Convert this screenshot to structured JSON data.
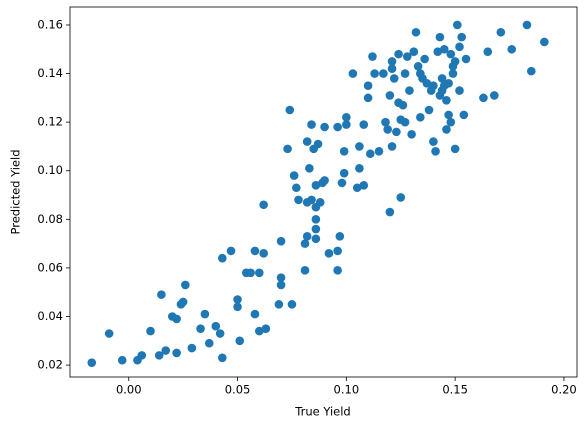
{
  "chart_data": {
    "type": "scatter",
    "xlabel": "True Yield",
    "ylabel": "Predicted Yield",
    "color": "#1f77b4",
    "xlim": [
      -0.027,
      0.206
    ],
    "ylim": [
      0.0151,
      0.1674
    ],
    "xticks": [
      {
        "value": 0,
        "label": "0.00"
      },
      0.05,
      {
        "value": 0.1,
        "label": "0.10"
      },
      0.15,
      {
        "value": 0.2,
        "label": "0.20"
      }
    ],
    "yticks": [
      0.02,
      0.04,
      0.06,
      0.08,
      {
        "value": 0.1,
        "label": "0.10"
      },
      0.12,
      0.14,
      0.16
    ],
    "x": [
      -0.017,
      -0.009,
      -0.003,
      0.004,
      0.006,
      0.01,
      0.014,
      0.015,
      0.017,
      0.02,
      0.022,
      0.022,
      0.024,
      0.025,
      0.026,
      0.029,
      0.033,
      0.035,
      0.037,
      0.04,
      0.042,
      0.043,
      0.043,
      0.047,
      0.05,
      0.05,
      0.051,
      0.054,
      0.056,
      0.058,
      0.058,
      0.06,
      0.06,
      0.062,
      0.062,
      0.063,
      0.069,
      0.07,
      0.07,
      0.07,
      0.073,
      0.074,
      0.075,
      0.076,
      0.077,
      0.078,
      0.081,
      0.081,
      0.082,
      0.082,
      0.082,
      0.083,
      0.084,
      0.084,
      0.085,
      0.086,
      0.086,
      0.086,
      0.086,
      0.086,
      0.087,
      0.088,
      0.089,
      0.09,
      0.09,
      0.092,
      0.096,
      0.096,
      0.097,
      0.096,
      0.098,
      0.099,
      0.099,
      0.1,
      0.1,
      0.103,
      0.105,
      0.106,
      0.106,
      0.108,
      0.108,
      0.11,
      0.111,
      0.11,
      0.112,
      0.113,
      0.115,
      0.117,
      0.118,
      0.119,
      0.12,
      0.12,
      0.121,
      0.121,
      0.121,
      0.122,
      0.123,
      0.124,
      0.124,
      0.125,
      0.125,
      0.126,
      0.127,
      0.127,
      0.128,
      0.129,
      0.13,
      0.131,
      0.132,
      0.133,
      0.134,
      0.134,
      0.135,
      0.136,
      0.137,
      0.138,
      0.139,
      0.14,
      0.14,
      0.141,
      0.142,
      0.143,
      0.143,
      0.144,
      0.144,
      0.145,
      0.145,
      0.146,
      0.146,
      0.147,
      0.147,
      0.148,
      0.148,
      0.149,
      0.149,
      0.15,
      0.15,
      0.151,
      0.152,
      0.152,
      0.153,
      0.154,
      0.155,
      0.163,
      0.165,
      0.168,
      0.171,
      0.176,
      0.183,
      0.185,
      0.191
    ],
    "values": [
      0.021,
      0.033,
      0.022,
      0.022,
      0.024,
      0.034,
      0.024,
      0.049,
      0.026,
      0.04,
      0.025,
      0.039,
      0.045,
      0.046,
      0.053,
      0.027,
      0.035,
      0.041,
      0.029,
      0.036,
      0.033,
      0.023,
      0.064,
      0.067,
      0.047,
      0.044,
      0.03,
      0.058,
      0.058,
      0.041,
      0.067,
      0.058,
      0.034,
      0.066,
      0.086,
      0.035,
      0.045,
      0.053,
      0.056,
      0.071,
      0.109,
      0.125,
      0.045,
      0.098,
      0.093,
      0.088,
      0.059,
      0.07,
      0.073,
      0.087,
      0.112,
      0.101,
      0.119,
      0.088,
      0.109,
      0.094,
      0.085,
      0.08,
      0.076,
      0.072,
      0.111,
      0.087,
      0.095,
      0.118,
      0.096,
      0.066,
      0.059,
      0.067,
      0.073,
      0.118,
      0.095,
      0.108,
      0.099,
      0.122,
      0.119,
      0.14,
      0.093,
      0.11,
      0.101,
      0.094,
      0.119,
      0.13,
      0.107,
      0.135,
      0.147,
      0.14,
      0.108,
      0.14,
      0.12,
      0.117,
      0.131,
      0.083,
      0.142,
      0.145,
      0.11,
      0.138,
      0.116,
      0.148,
      0.128,
      0.089,
      0.121,
      0.127,
      0.14,
      0.12,
      0.147,
      0.133,
      0.115,
      0.149,
      0.157,
      0.143,
      0.14,
      0.122,
      0.138,
      0.146,
      0.136,
      0.125,
      0.133,
      0.112,
      0.135,
      0.108,
      0.149,
      0.155,
      0.131,
      0.133,
      0.138,
      0.15,
      0.135,
      0.129,
      0.117,
      0.123,
      0.136,
      0.12,
      0.148,
      0.143,
      0.14,
      0.109,
      0.145,
      0.16,
      0.133,
      0.151,
      0.155,
      0.123,
      0.146,
      0.13,
      0.149,
      0.131,
      0.157,
      0.15,
      0.16,
      0.141,
      0.153
    ]
  }
}
